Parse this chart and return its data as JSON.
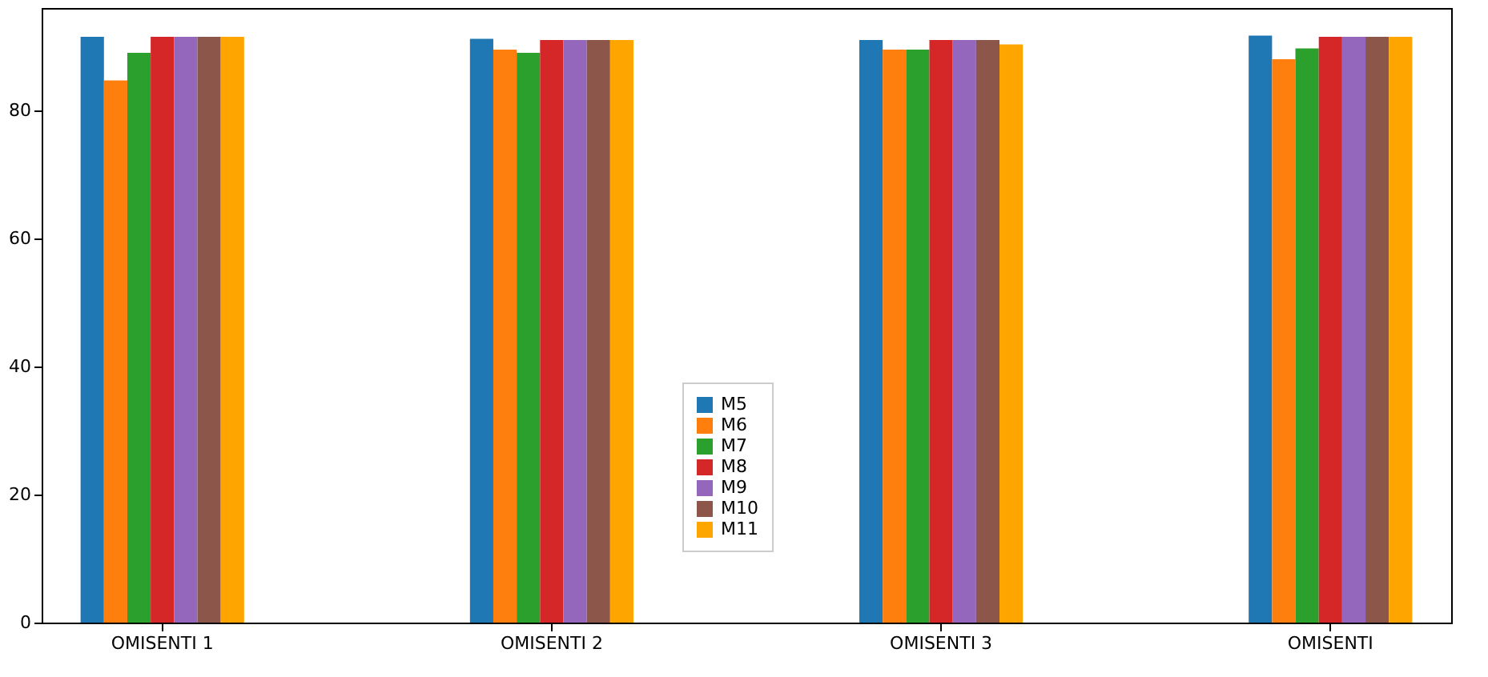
{
  "chart_data": {
    "type": "bar",
    "categories": [
      "OMISENTI 1",
      "OMISENTI 2",
      "OMISENTI 3",
      "OMISENTI"
    ],
    "series": [
      {
        "name": "M5",
        "color": "#1f77b4",
        "values": [
          91.5,
          91.2,
          91,
          91.7
        ]
      },
      {
        "name": "M6",
        "color": "#ff7f0e",
        "values": [
          84.7,
          89.5,
          89.5,
          88
        ]
      },
      {
        "name": "M7",
        "color": "#2ca02c",
        "values": [
          89,
          89,
          89.5,
          89.7
        ]
      },
      {
        "name": "M8",
        "color": "#d62728",
        "values": [
          91.5,
          91,
          91,
          91.5
        ]
      },
      {
        "name": "M9",
        "color": "#9467bd",
        "values": [
          91.5,
          91,
          91,
          91.5
        ]
      },
      {
        "name": "M10",
        "color": "#8c564b",
        "values": [
          91.5,
          91,
          91,
          91.5
        ]
      },
      {
        "name": "M11",
        "color": "#ffa500",
        "values": [
          91.5,
          91,
          90.3,
          91.5
        ]
      }
    ],
    "ylim": [
      0,
      96
    ],
    "yticks": [
      0,
      20,
      40,
      60,
      80
    ],
    "grid": false,
    "legend": "bottom"
  }
}
